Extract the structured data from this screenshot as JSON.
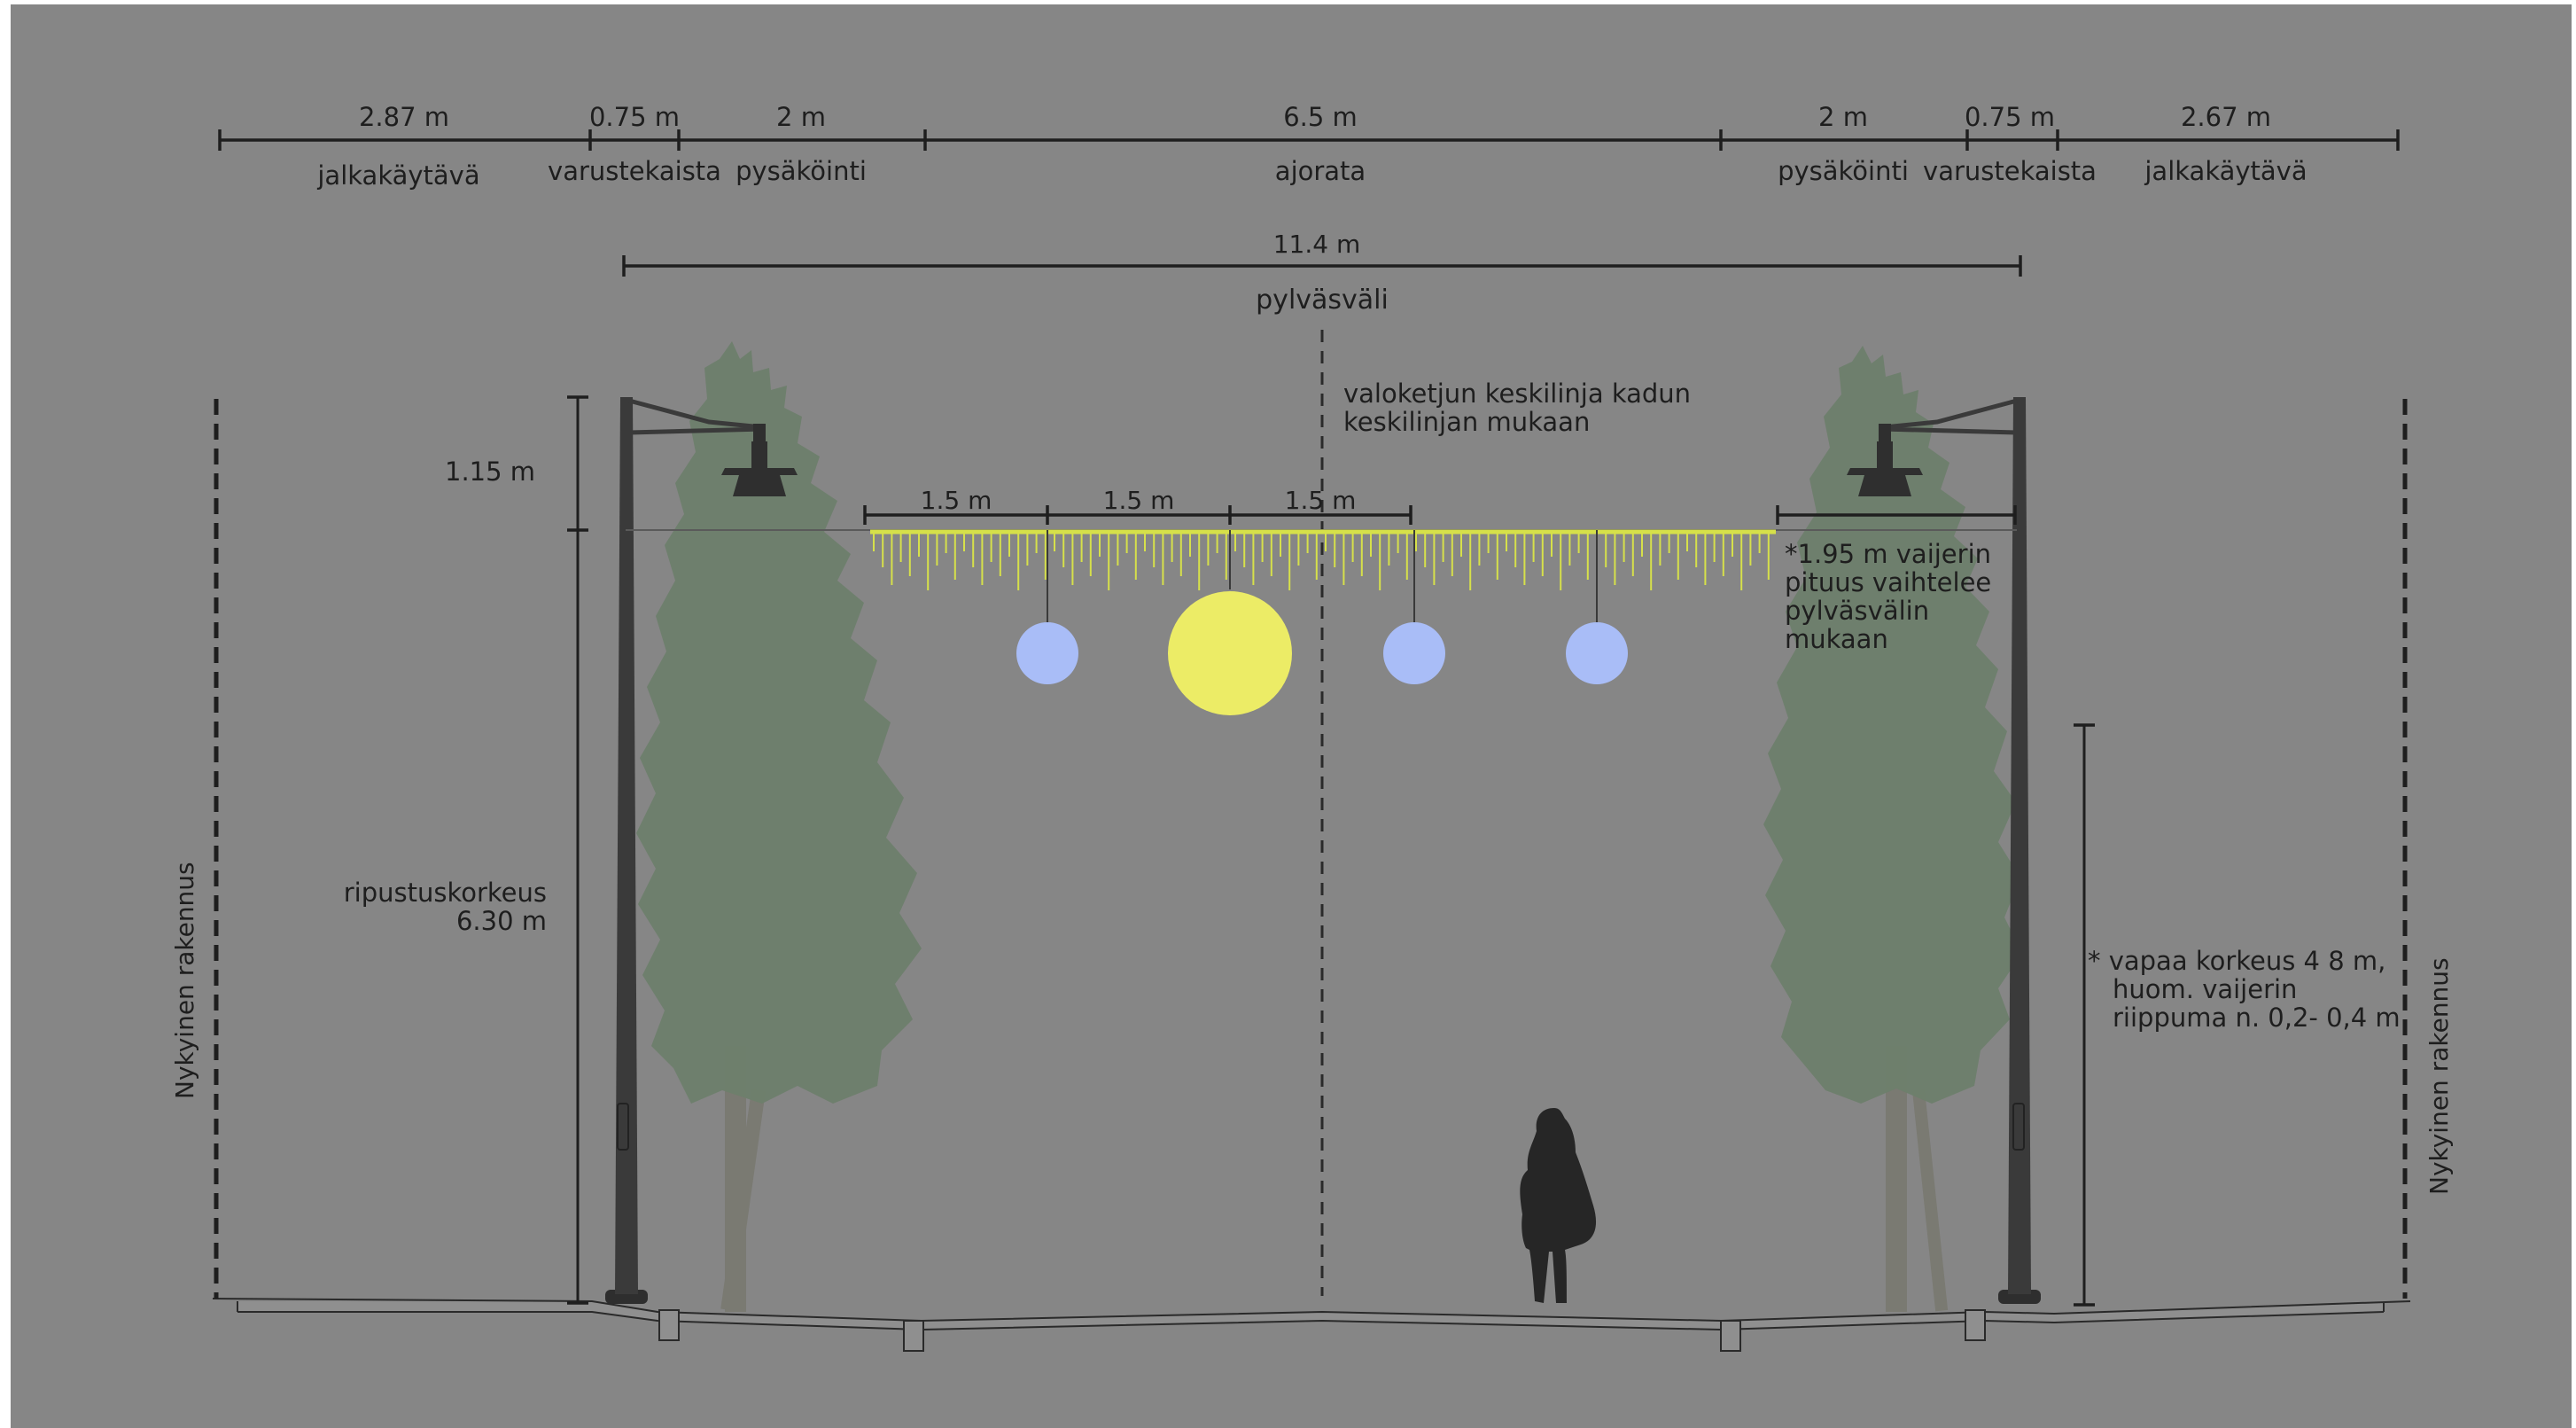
{
  "colors": {
    "background": "#868686",
    "frame": "#ffffff",
    "tree": "#6d7f6b",
    "tree_trunk": "#7a7a72",
    "pole": "#3a3a3a",
    "luminaire": "#2f2f2f",
    "light_chain": "#d6e04a",
    "globe_blue": "#a9bdf7",
    "globe_yellow": "#ecec66",
    "person": "#262626",
    "ground_fill": "#8f8f8f",
    "ink": "#1e1e1e"
  },
  "top_dimensions": {
    "values": [
      "2.87 m",
      "0.75 m",
      "2 m",
      "6.5 m",
      "2 m",
      "0.75 m",
      "2.67 m"
    ],
    "labels": [
      "jalkakäytävä",
      "varustekaista",
      "pysäköinti",
      "ajorata",
      "pysäköinti",
      "varustekaista",
      "jalkakäytävä"
    ]
  },
  "pole_span": {
    "value": "11.4 m",
    "label": "pylväsväli"
  },
  "centerline_note": {
    "line1": "valoketjun keskilinja kadun",
    "line2": "keskilinjan mukaan"
  },
  "chain_spacing": {
    "values": [
      "1.5 m",
      "1.5 m",
      "1.5 m"
    ]
  },
  "luminaire_offset": {
    "value": "1.15 m"
  },
  "hanging_height": {
    "line1": "ripustuskorkeus",
    "line2": "6.30 m"
  },
  "wire_note": {
    "line1": "*1.95 m vaijerin",
    "line2": "pituus vaihtelee",
    "line3": "pylväsvälin",
    "line4": "mukaan"
  },
  "clearance_note": {
    "line1": "* vapaa korkeus 4 8 m,",
    "line2": "huom. vaijerin",
    "line3": "riippuma n. 0,2- 0,4 m"
  },
  "building_left": {
    "label": "Nykyinen rakennus"
  },
  "building_right": {
    "label": "Nykyinen rakennus"
  },
  "globes": [
    {
      "color_key": "globe_blue",
      "size": "small"
    },
    {
      "color_key": "globe_yellow",
      "size": "large"
    },
    {
      "color_key": "globe_blue",
      "size": "small"
    },
    {
      "color_key": "globe_blue",
      "size": "small"
    }
  ]
}
